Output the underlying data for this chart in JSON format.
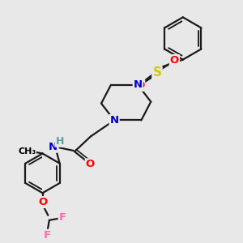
{
  "bg_color": "#e8e8e8",
  "atom_colors": {
    "C": "#000000",
    "N": "#0000cd",
    "O": "#ff0000",
    "S": "#cccc00",
    "F": "#ff69b4",
    "H": "#5f9ea0"
  },
  "bond_color": "#1a1a1a",
  "bond_width": 1.6,
  "font_size_atom": 9.5
}
